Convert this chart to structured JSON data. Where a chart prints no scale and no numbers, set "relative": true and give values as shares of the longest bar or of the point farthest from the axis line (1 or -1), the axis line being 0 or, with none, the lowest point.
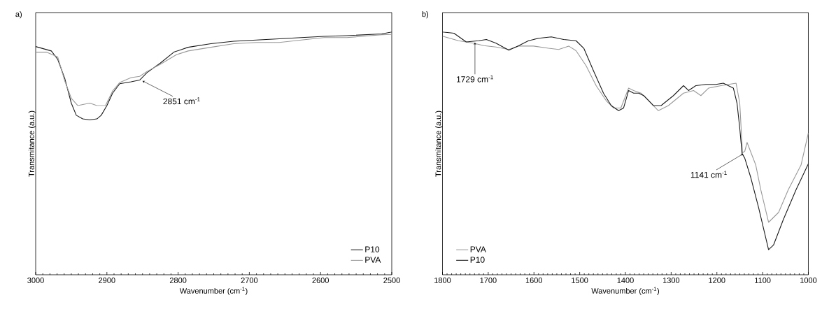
{
  "chart_data": [
    {
      "type": "line",
      "title": "a)",
      "xlabel": "Wavenumber (cm$^{-1}$)",
      "ylabel": "Transmitance (a.u.)",
      "relative": true,
      "xlim": [
        3000,
        2500
      ],
      "xticks": [
        3000,
        2900,
        2800,
        2700,
        2600,
        2500
      ],
      "legend": "bottom right",
      "annotations": [
        {
          "text": "2851 cm$^{-1}$",
          "x": 2851,
          "y": 0.8
        }
      ],
      "series": [
        {
          "name": "P10",
          "color": "#1a1a1a",
          "x": [
            3000,
            2978,
            2969,
            2959,
            2950,
            2943,
            2934,
            2924,
            2914,
            2908,
            2900,
            2892,
            2882,
            2866,
            2854,
            2844,
            2825,
            2806,
            2786,
            2754,
            2722,
            2690,
            2658,
            2627,
            2595,
            2563,
            2514,
            2500
          ],
          "values": [
            0.94,
            0.922,
            0.887,
            0.807,
            0.707,
            0.657,
            0.642,
            0.638,
            0.642,
            0.657,
            0.697,
            0.748,
            0.787,
            0.795,
            0.802,
            0.832,
            0.872,
            0.917,
            0.937,
            0.952,
            0.962,
            0.967,
            0.972,
            0.977,
            0.982,
            0.985,
            0.992,
            1.0
          ]
        },
        {
          "name": "PVA",
          "color": "#999999",
          "x": [
            3000,
            2985,
            2969,
            2959,
            2950,
            2941,
            2924,
            2914,
            2902,
            2892,
            2882,
            2866,
            2854,
            2844,
            2825,
            2802,
            2786,
            2754,
            2722,
            2690,
            2658,
            2627,
            2595,
            2563,
            2514,
            2500
          ],
          "values": [
            0.917,
            0.917,
            0.897,
            0.797,
            0.727,
            0.697,
            0.707,
            0.697,
            0.697,
            0.757,
            0.792,
            0.812,
            0.817,
            0.837,
            0.867,
            0.907,
            0.922,
            0.937,
            0.952,
            0.957,
            0.957,
            0.967,
            0.977,
            0.977,
            0.989,
            0.99
          ]
        }
      ]
    },
    {
      "type": "line",
      "title": "b)",
      "xlabel": "Wavenumber (cm$^{-1}$)",
      "ylabel": "Transmitance (a.u.)",
      "relative": true,
      "xlim": [
        1800,
        1000
      ],
      "xticks": [
        1800,
        1700,
        1600,
        1500,
        1400,
        1300,
        1200,
        1100,
        1000
      ],
      "legend": "bottom left",
      "annotations": [
        {
          "text": "1729 cm$^{-1}$",
          "x": 1729,
          "y": 0.96
        },
        {
          "text": "1141 cm$^{-1}$",
          "x": 1141,
          "y": 0.5
        }
      ],
      "series": [
        {
          "name": "PVA",
          "color": "#999999",
          "x": [
            1800,
            1765,
            1732,
            1710,
            1683,
            1655,
            1633,
            1601,
            1568,
            1546,
            1524,
            1508,
            1486,
            1464,
            1442,
            1426,
            1410,
            1393,
            1382,
            1366,
            1349,
            1328,
            1306,
            1273,
            1251,
            1235,
            1218,
            1191,
            1158,
            1150,
            1144,
            1139,
            1134,
            1115,
            1104,
            1087,
            1065,
            1044,
            1016,
            1000
          ],
          "values": [
            0.983,
            0.964,
            0.954,
            0.944,
            0.938,
            0.928,
            0.942,
            0.942,
            0.933,
            0.928,
            0.942,
            0.923,
            0.861,
            0.779,
            0.717,
            0.687,
            0.687,
            0.769,
            0.759,
            0.748,
            0.717,
            0.676,
            0.697,
            0.748,
            0.759,
            0.738,
            0.769,
            0.779,
            0.789,
            0.707,
            0.502,
            0.509,
            0.545,
            0.452,
            0.35,
            0.216,
            0.257,
            0.35,
            0.452,
            0.584
          ]
        },
        {
          "name": "P10",
          "color": "#1a1a1a",
          "x": [
            1800,
            1775,
            1748,
            1721,
            1704,
            1683,
            1655,
            1633,
            1612,
            1590,
            1562,
            1535,
            1508,
            1491,
            1470,
            1448,
            1431,
            1415,
            1404,
            1393,
            1382,
            1371,
            1360,
            1339,
            1322,
            1295,
            1273,
            1262,
            1246,
            1224,
            1202,
            1186,
            1164,
            1156,
            1150,
            1145,
            1139,
            1126,
            1109,
            1087,
            1076,
            1055,
            1027,
            1000
          ],
          "values": [
            1.0,
            0.995,
            0.959,
            0.964,
            0.969,
            0.954,
            0.925,
            0.944,
            0.964,
            0.974,
            0.98,
            0.969,
            0.964,
            0.933,
            0.841,
            0.748,
            0.697,
            0.676,
            0.687,
            0.759,
            0.748,
            0.748,
            0.738,
            0.697,
            0.697,
            0.738,
            0.779,
            0.759,
            0.779,
            0.784,
            0.784,
            0.789,
            0.769,
            0.707,
            0.604,
            0.5,
            0.48,
            0.401,
            0.278,
            0.103,
            0.123,
            0.226,
            0.35,
            0.457
          ]
        }
      ]
    }
  ]
}
